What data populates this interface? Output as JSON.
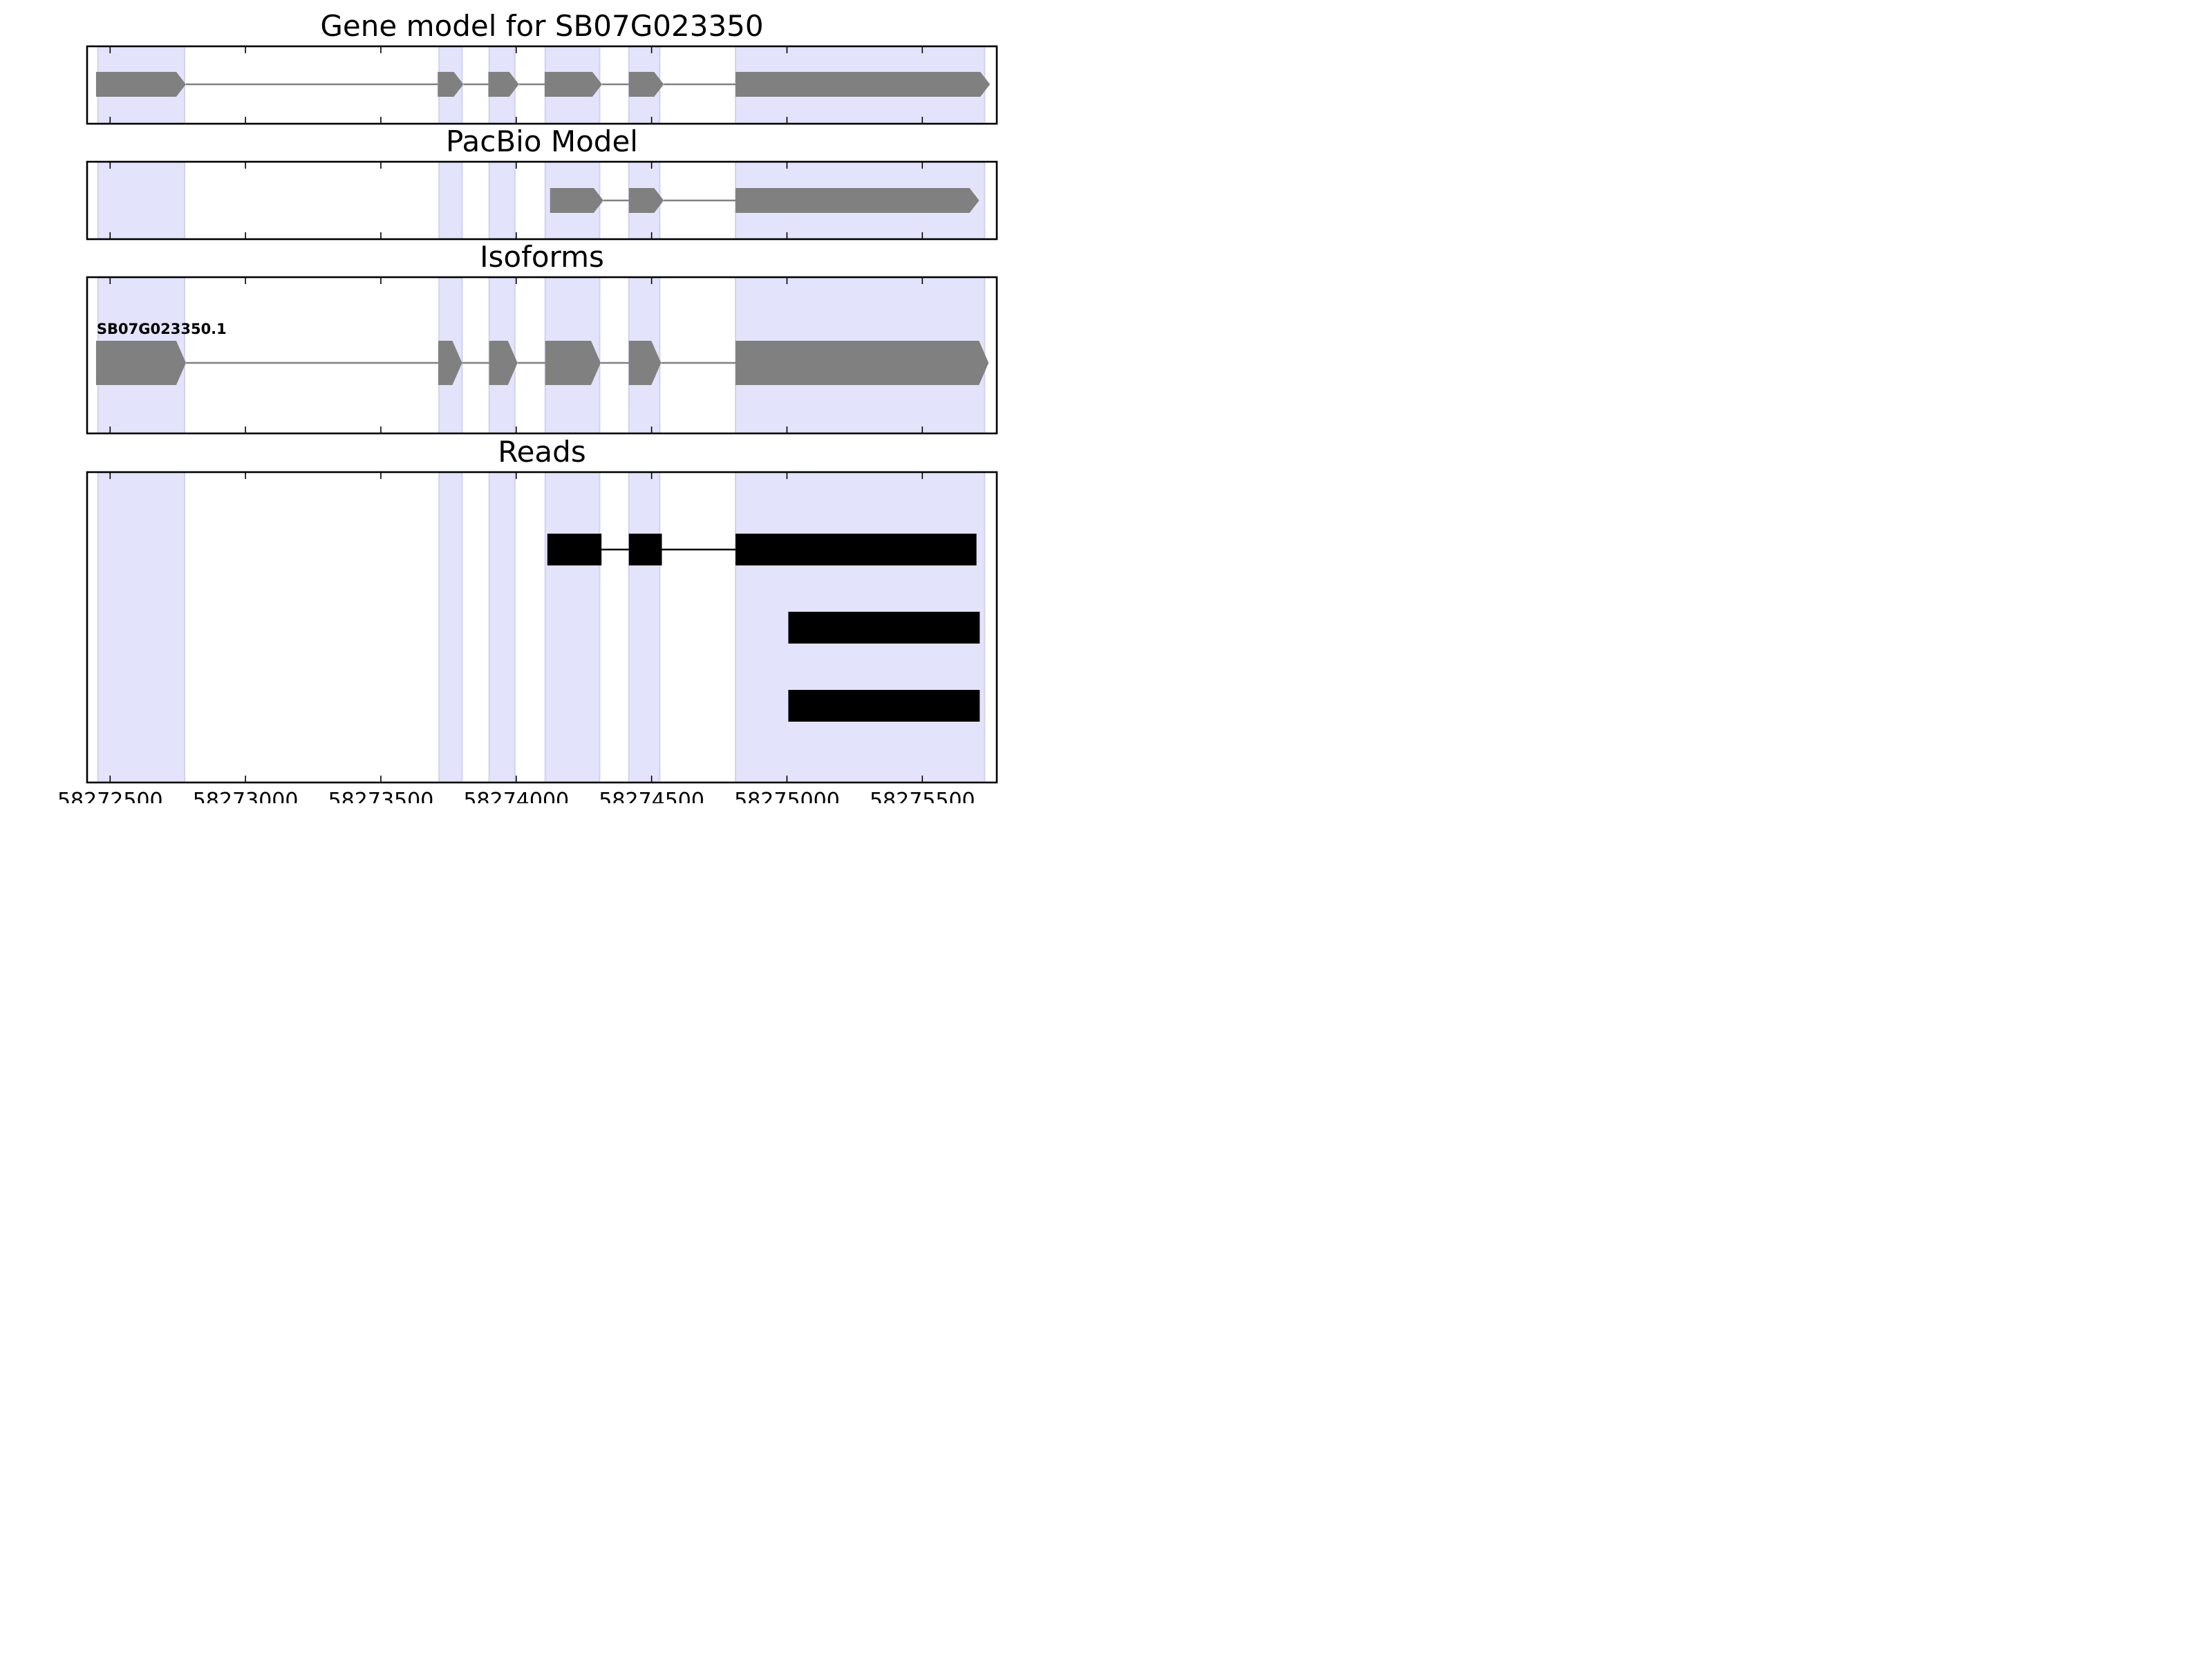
{
  "chart_data": {
    "type": "gene-structure",
    "xlim": [
      58272415,
      58275775
    ],
    "x_ticks": [
      58272500,
      58273000,
      58273500,
      58274000,
      58274500,
      58275000,
      58275500
    ],
    "x_tick_labels": [
      "58272500",
      "58273000",
      "58273500",
      "58274000",
      "58274500",
      "58275000",
      "58275500"
    ],
    "exon_highlight_color": "#e3e3fb",
    "exon_highlights": [
      [
        58272455,
        58272775
      ],
      [
        58273715,
        58273800
      ],
      [
        58273900,
        58273995
      ],
      [
        58274107,
        58274308
      ],
      [
        58274416,
        58274530
      ],
      [
        58274810,
        58275730
      ]
    ],
    "panels": [
      {
        "key": "gene_model",
        "title": "Gene model for SB07G023350",
        "feature_color": "#808080",
        "tracks": [
          {
            "label": "",
            "exons": [
              [
                58272448,
                58272780
              ],
              [
                58273710,
                58273805
              ],
              [
                58273897,
                58274010
              ],
              [
                58274105,
                58274317
              ],
              [
                58274416,
                58274545
              ],
              [
                58274810,
                58275750
              ]
            ]
          }
        ]
      },
      {
        "key": "pacbio_model",
        "title": "PacBio Model",
        "feature_color": "#808080",
        "tracks": [
          {
            "label": "",
            "exons": [
              [
                58274125,
                58274322
              ],
              [
                58274416,
                58274545
              ],
              [
                58274810,
                58275710
              ]
            ]
          }
        ]
      },
      {
        "key": "isoforms",
        "title": "Isoforms",
        "feature_color": "#808080",
        "tracks": [
          {
            "label": "SB07G023350.1",
            "exons": [
              [
                58272448,
                58272780
              ],
              [
                58273712,
                58273800
              ],
              [
                58273900,
                58274005
              ],
              [
                58274107,
                58274312
              ],
              [
                58274416,
                58274535
              ],
              [
                58274810,
                58275745
              ]
            ]
          }
        ]
      },
      {
        "key": "reads",
        "title": "Reads",
        "feature_color": "#000000",
        "tracks": [
          {
            "label": "",
            "blocks": [
              [
                58274115,
                58274315
              ],
              [
                58274416,
                58274538
              ],
              [
                58274810,
                58275700
              ]
            ]
          },
          {
            "label": "",
            "blocks": [
              [
                58275005,
                58275712
              ]
            ]
          },
          {
            "label": "",
            "blocks": [
              [
                58275005,
                58275712
              ]
            ]
          }
        ]
      }
    ]
  }
}
